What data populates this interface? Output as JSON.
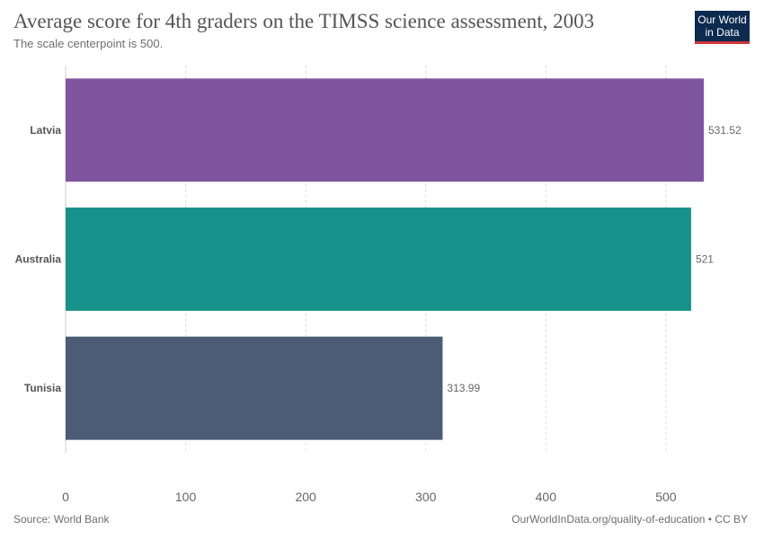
{
  "header": {
    "title": "Average score for 4th graders on the TIMSS science assessment, 2003",
    "subtitle": "The scale centerpoint is 500."
  },
  "logo": {
    "line1": "Our World",
    "line2": "in Data",
    "bg_color": "#0d2a4f",
    "accent_color": "#d0343b"
  },
  "footer": {
    "source": "Source: World Bank",
    "link": "OurWorldInData.org/quality-of-education",
    "license": " • CC BY"
  },
  "chart_data": {
    "type": "bar",
    "orientation": "horizontal",
    "categories": [
      "Latvia",
      "Australia",
      "Tunisia"
    ],
    "values": [
      531.52,
      521,
      313.99
    ],
    "value_labels": [
      "531.52",
      "521",
      "313.99"
    ],
    "colors": [
      "#7f559f",
      "#17928a",
      "#4c5c75"
    ],
    "xlim": [
      0,
      531.52
    ],
    "xticks": [
      0,
      100,
      200,
      300,
      400,
      500
    ],
    "xtick_labels": [
      "0",
      "100",
      "200",
      "300",
      "400",
      "500"
    ],
    "grid": true
  }
}
